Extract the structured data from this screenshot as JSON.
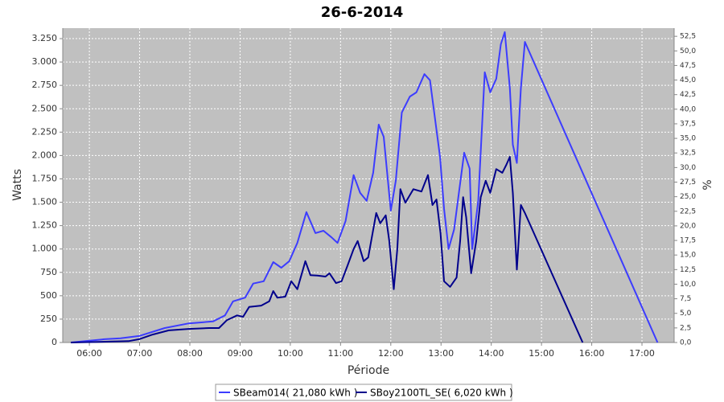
{
  "chart_data": {
    "type": "line",
    "title": "26-6-2014",
    "x_label": "Période",
    "y_label": "Watts",
    "y2_label": "%",
    "xlim": [
      5.47,
      17.64
    ],
    "xticks": [
      {
        "value": 6,
        "label": "06:00"
      },
      {
        "value": 7,
        "label": "07:00"
      },
      {
        "value": 8,
        "label": "08:00"
      },
      {
        "value": 9,
        "label": "09:00"
      },
      {
        "value": 10,
        "label": "10:00"
      },
      {
        "value": 11,
        "label": "11:00"
      },
      {
        "value": 12,
        "label": "12:00"
      },
      {
        "value": 13,
        "label": "13:00"
      },
      {
        "value": 14,
        "label": "14:00"
      },
      {
        "value": 15,
        "label": "15:00"
      },
      {
        "value": 16,
        "label": "16:00"
      },
      {
        "value": 17,
        "label": "17:00"
      }
    ],
    "ylim": [
      0,
      3362
    ],
    "yticks": [
      0,
      250,
      500,
      750,
      {
        "value": 1000,
        "label": "1.000"
      },
      {
        "value": 1250,
        "label": "1.250"
      },
      {
        "value": 1500,
        "label": "1.500"
      },
      {
        "value": 1750,
        "label": "1.750"
      },
      {
        "value": 2000,
        "label": "2.000"
      },
      {
        "value": 2250,
        "label": "2.250"
      },
      {
        "value": 2500,
        "label": "2.500"
      },
      {
        "value": 2750,
        "label": "2.750"
      },
      {
        "value": 3000,
        "label": "3.000"
      },
      {
        "value": 3250,
        "label": "3.250"
      }
    ],
    "y2lim": [
      0,
      53.9
    ],
    "y2ticks": [
      {
        "value": 0,
        "label": "0,0"
      },
      {
        "value": 2.5,
        "label": "2,5"
      },
      {
        "value": 5,
        "label": "5,0"
      },
      {
        "value": 7.5,
        "label": "7,5"
      },
      {
        "value": 10,
        "label": "10,0"
      },
      {
        "value": 12.5,
        "label": "12,5"
      },
      {
        "value": 15,
        "label": "15,0"
      },
      {
        "value": 17.5,
        "label": "17,5"
      },
      {
        "value": 20,
        "label": "20,0"
      },
      {
        "value": 22.5,
        "label": "22,5"
      },
      {
        "value": 25,
        "label": "25,0"
      },
      {
        "value": 27.5,
        "label": "27,5"
      },
      {
        "value": 30,
        "label": "30,0"
      },
      {
        "value": 32.5,
        "label": "32,5"
      },
      {
        "value": 35,
        "label": "35,0"
      },
      {
        "value": 37.5,
        "label": "37,5"
      },
      {
        "value": 40,
        "label": "40,0"
      },
      {
        "value": 42.5,
        "label": "42,5"
      },
      {
        "value": 45,
        "label": "45,0"
      },
      {
        "value": 47.5,
        "label": "47,5"
      },
      {
        "value": 50,
        "label": "50,0"
      },
      {
        "value": 52.5,
        "label": "52,5"
      }
    ],
    "grid": true,
    "legend": "bottom",
    "series": [
      {
        "name": "SBeam014( 21,080 kWh )",
        "color": "#3c3cff",
        "x": [
          5.63,
          6.3,
          6.62,
          6.99,
          7.5,
          7.98,
          8.46,
          8.7,
          8.86,
          9.1,
          9.26,
          9.47,
          9.66,
          9.82,
          9.98,
          10.14,
          10.32,
          10.5,
          10.66,
          10.82,
          10.94,
          11.1,
          11.26,
          11.39,
          11.52,
          11.65,
          11.76,
          11.86,
          12.0,
          12.1,
          12.22,
          12.38,
          12.51,
          12.67,
          12.78,
          12.98,
          13.06,
          13.15,
          13.26,
          13.46,
          13.57,
          13.62,
          13.74,
          13.87,
          13.98,
          14.1,
          14.19,
          14.27,
          14.37,
          14.43,
          14.51,
          14.59,
          14.67,
          17.31
        ],
        "values": [
          0,
          35,
          45,
          70,
          155,
          205,
          225,
          290,
          440,
          480,
          630,
          655,
          860,
          800,
          870,
          1065,
          1395,
          1170,
          1195,
          1125,
          1065,
          1300,
          1790,
          1600,
          1515,
          1815,
          2330,
          2200,
          1410,
          1730,
          2460,
          2630,
          2675,
          2870,
          2805,
          1985,
          1430,
          1000,
          1210,
          2030,
          1860,
          1000,
          1515,
          2890,
          2675,
          2820,
          3190,
          3320,
          2720,
          2115,
          1920,
          2720,
          3215,
          0
        ]
      },
      {
        "name": "SBoy2100TL_SE( 6,020 kWh )",
        "color": "#00008c",
        "x": [
          5.63,
          6.46,
          6.78,
          6.99,
          7.26,
          7.58,
          7.98,
          8.38,
          8.58,
          8.74,
          8.94,
          9.06,
          9.18,
          9.42,
          9.58,
          9.66,
          9.74,
          9.9,
          10.02,
          10.14,
          10.3,
          10.4,
          10.54,
          10.7,
          10.78,
          10.91,
          11.02,
          11.14,
          11.26,
          11.34,
          11.46,
          11.55,
          11.71,
          11.79,
          11.9,
          11.97,
          12.06,
          12.13,
          12.19,
          12.29,
          12.45,
          12.61,
          12.74,
          12.83,
          12.91,
          12.99,
          13.06,
          13.18,
          13.31,
          13.38,
          13.44,
          13.5,
          13.6,
          13.7,
          13.79,
          13.89,
          13.98,
          14.1,
          14.22,
          14.3,
          14.37,
          14.43,
          14.51,
          14.59,
          14.67,
          15.82
        ],
        "values": [
          0,
          10,
          15,
          35,
          85,
          130,
          145,
          155,
          155,
          240,
          290,
          275,
          380,
          395,
          440,
          550,
          480,
          490,
          655,
          570,
          870,
          720,
          715,
          705,
          740,
          635,
          655,
          825,
          1000,
          1085,
          870,
          910,
          1385,
          1275,
          1360,
          1085,
          570,
          1000,
          1640,
          1495,
          1640,
          1615,
          1790,
          1470,
          1530,
          1170,
          655,
          595,
          695,
          1085,
          1555,
          1340,
          740,
          1085,
          1555,
          1730,
          1600,
          1855,
          1815,
          1900,
          1985,
          1600,
          780,
          1470,
          1385,
          0
        ]
      }
    ]
  }
}
